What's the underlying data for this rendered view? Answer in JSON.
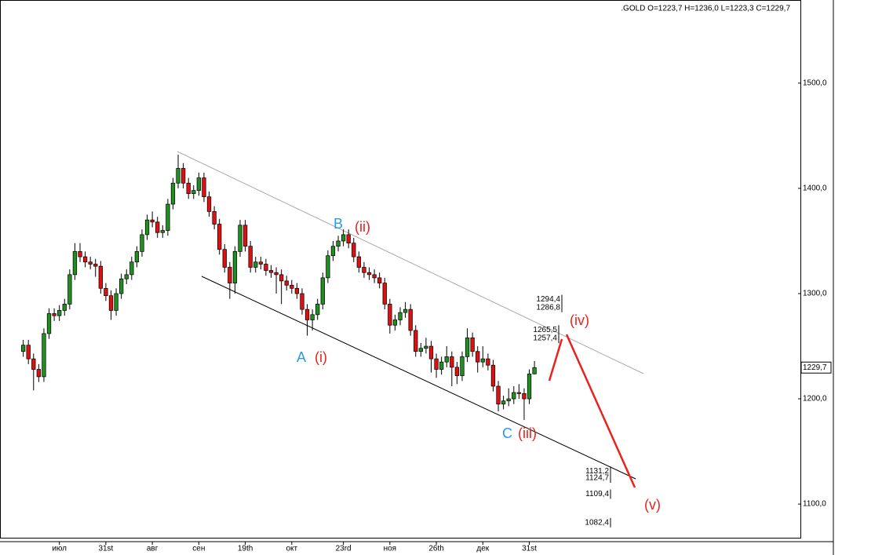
{
  "chart_data": {
    "type": "candlestick",
    "header": ".GOLD O=1223,7 H=1236,0 L=1223,3 C=1229,7",
    "open": [
      1245,
      1251,
      1238,
      1228,
      1221,
      1262,
      1281,
      1279,
      1284,
      1290,
      1318,
      1340,
      1335,
      1330,
      1328,
      1326,
      1305,
      1298,
      1284,
      1300,
      1314,
      1318,
      1330,
      1340,
      1356,
      1370,
      1368,
      1358,
      1360,
      1385,
      1405,
      1419,
      1405,
      1395,
      1398,
      1410,
      1392,
      1378,
      1366,
      1342,
      1325,
      1310,
      1340,
      1365,
      1345,
      1325,
      1330,
      1328,
      1322,
      1320,
      1318,
      1312,
      1308,
      1305,
      1300,
      1285,
      1275,
      1280,
      1290,
      1315,
      1336,
      1345,
      1350,
      1356,
      1348,
      1335,
      1325,
      1320,
      1318,
      1315,
      1310,
      1290,
      1270,
      1275,
      1282,
      1285,
      1265,
      1245,
      1248,
      1250,
      1238,
      1228,
      1235,
      1240,
      1230,
      1222,
      1240,
      1258,
      1245,
      1235,
      1238,
      1232,
      1212,
      1195,
      1198,
      1200,
      1206,
      1205,
      1200,
      1223.7
    ],
    "high": [
      1256,
      1256,
      1243,
      1233,
      1267,
      1286,
      1286,
      1289,
      1295,
      1323,
      1348,
      1348,
      1340,
      1335,
      1333,
      1331,
      1310,
      1303,
      1305,
      1319,
      1323,
      1335,
      1345,
      1361,
      1375,
      1378,
      1373,
      1365,
      1390,
      1410,
      1432,
      1424,
      1410,
      1403,
      1415,
      1415,
      1397,
      1383,
      1371,
      1347,
      1330,
      1345,
      1370,
      1370,
      1350,
      1335,
      1335,
      1333,
      1327,
      1325,
      1323,
      1317,
      1313,
      1310,
      1305,
      1290,
      1285,
      1295,
      1320,
      1341,
      1350,
      1355,
      1361,
      1361,
      1353,
      1340,
      1330,
      1325,
      1323,
      1320,
      1315,
      1295,
      1280,
      1287,
      1292,
      1290,
      1270,
      1253,
      1258,
      1255,
      1243,
      1240,
      1250,
      1245,
      1235,
      1245,
      1267,
      1263,
      1250,
      1250,
      1243,
      1237,
      1217,
      1203,
      1210,
      1212,
      1214,
      1210,
      1228,
      1236
    ],
    "low": [
      1240,
      1233,
      1208,
      1216,
      1216,
      1257,
      1274,
      1274,
      1279,
      1285,
      1313,
      1330,
      1325,
      1323,
      1316,
      1300,
      1293,
      1275,
      1279,
      1295,
      1309,
      1313,
      1325,
      1335,
      1351,
      1363,
      1353,
      1353,
      1355,
      1380,
      1400,
      1400,
      1390,
      1390,
      1393,
      1387,
      1373,
      1361,
      1337,
      1320,
      1295,
      1300,
      1335,
      1340,
      1320,
      1320,
      1323,
      1317,
      1315,
      1300,
      1290,
      1303,
      1300,
      1295,
      1280,
      1260,
      1265,
      1275,
      1285,
      1310,
      1331,
      1340,
      1345,
      1343,
      1330,
      1320,
      1315,
      1313,
      1310,
      1305,
      1285,
      1262,
      1265,
      1270,
      1277,
      1260,
      1240,
      1240,
      1243,
      1225,
      1220,
      1223,
      1230,
      1212,
      1214,
      1217,
      1235,
      1240,
      1225,
      1230,
      1227,
      1207,
      1188,
      1190,
      1193,
      1195,
      1200,
      1180,
      1195,
      1223.3
    ],
    "close": [
      1251,
      1238,
      1228,
      1221,
      1262,
      1281,
      1279,
      1284,
      1290,
      1318,
      1340,
      1335,
      1330,
      1328,
      1326,
      1305,
      1298,
      1284,
      1300,
      1314,
      1318,
      1330,
      1340,
      1356,
      1370,
      1368,
      1358,
      1360,
      1385,
      1405,
      1419,
      1405,
      1395,
      1398,
      1410,
      1392,
      1378,
      1366,
      1342,
      1325,
      1310,
      1340,
      1365,
      1345,
      1325,
      1330,
      1328,
      1322,
      1320,
      1318,
      1312,
      1308,
      1305,
      1300,
      1285,
      1275,
      1280,
      1290,
      1315,
      1336,
      1345,
      1350,
      1356,
      1348,
      1335,
      1325,
      1320,
      1318,
      1315,
      1310,
      1290,
      1270,
      1275,
      1282,
      1285,
      1265,
      1245,
      1248,
      1250,
      1238,
      1228,
      1235,
      1240,
      1230,
      1222,
      1240,
      1258,
      1245,
      1235,
      1238,
      1232,
      1212,
      1195,
      1198,
      1200,
      1206,
      1205,
      1200,
      1223.7,
      1229.7
    ],
    "up_color": "#1f8f1f",
    "down_color": "#e01010",
    "xlim": [
      -4.5,
      150.5
    ],
    "xticks": [
      {
        "value": 7,
        "label": "июл"
      },
      {
        "value": 16,
        "label": "31st"
      },
      {
        "value": 25,
        "label": "авг"
      },
      {
        "value": 34,
        "label": "сен"
      },
      {
        "value": 43,
        "label": "19th"
      },
      {
        "value": 52,
        "label": "окт"
      },
      {
        "value": 62,
        "label": "23rd"
      },
      {
        "value": 71,
        "label": "ноя"
      },
      {
        "value": 80,
        "label": "26th"
      },
      {
        "value": 89,
        "label": "дек"
      },
      {
        "value": 98,
        "label": "31st"
      }
    ],
    "ylim": [
      1068,
      1579
    ],
    "yticks": [
      {
        "value": 1100,
        "label": "1100,0"
      },
      {
        "value": 1200,
        "label": "1200,0"
      },
      {
        "value": 1300,
        "label": "1300,0"
      },
      {
        "value": 1400,
        "label": "1400,0"
      },
      {
        "value": 1500,
        "label": "1500,0"
      }
    ],
    "last_price": {
      "value": 1229.7,
      "label": "1229,7"
    },
    "levels": [
      {
        "value": 1294.4,
        "label": "1294,4"
      },
      {
        "value": 1286.8,
        "label": "1286,8"
      },
      {
        "value": 1265.5,
        "label": "1265,5"
      },
      {
        "value": 1257.4,
        "label": "1257,4"
      },
      {
        "value": 1131.2,
        "label": "1131,2"
      },
      {
        "value": 1124.7,
        "label": "1124,7"
      },
      {
        "value": 1109.4,
        "label": "1109,4"
      },
      {
        "value": 1082.4,
        "label": "1082,4"
      }
    ],
    "annotations": [
      "A",
      "(i)",
      "B",
      "(ii)",
      "C",
      "(iii)",
      "(iv)",
      "(v)"
    ]
  }
}
